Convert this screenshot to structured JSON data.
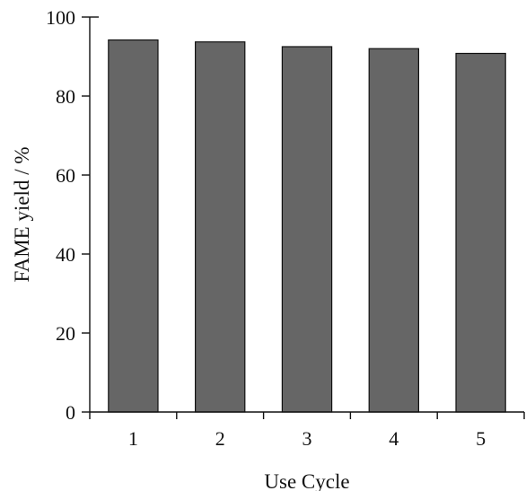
{
  "chart_data": {
    "type": "bar",
    "title": "",
    "xlabel": "Use Cycle",
    "ylabel": "FAME yield / %",
    "categories": [
      "1",
      "2",
      "3",
      "4",
      "5"
    ],
    "values": [
      94.2,
      93.7,
      92.5,
      92.0,
      90.8
    ],
    "ylim": [
      0,
      100
    ],
    "yticks": [
      0,
      20,
      40,
      60,
      80,
      100
    ],
    "grid": false,
    "legend": "none",
    "bar_color": "#666666"
  }
}
